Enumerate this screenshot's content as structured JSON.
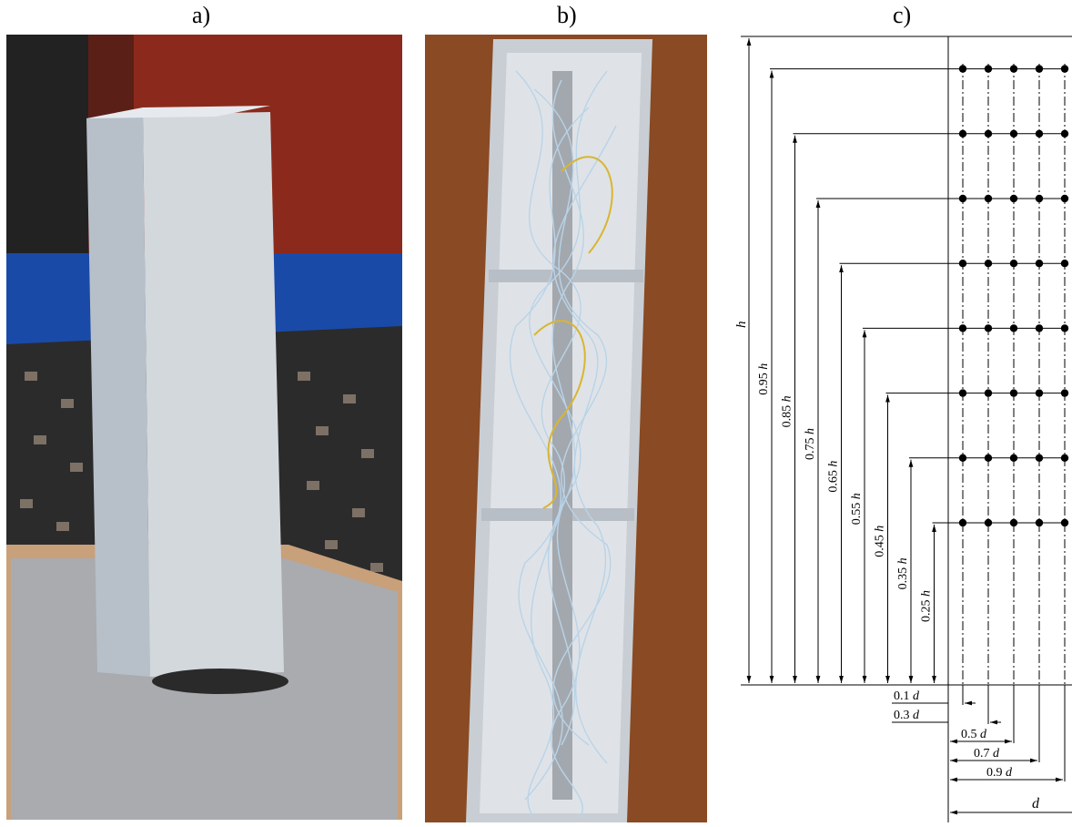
{
  "panels": {
    "a": {
      "label": "a)"
    },
    "b": {
      "label": "b)"
    },
    "c": {
      "label": "c)"
    }
  },
  "diagram": {
    "height_label": "h",
    "height_levels": [
      {
        "coef": "0.95",
        "var": "h"
      },
      {
        "coef": "0.85",
        "var": "h"
      },
      {
        "coef": "0.75",
        "var": "h"
      },
      {
        "coef": "0.65",
        "var": "h"
      },
      {
        "coef": "0.55",
        "var": "h"
      },
      {
        "coef": "0.45",
        "var": "h"
      },
      {
        "coef": "0.35",
        "var": "h"
      },
      {
        "coef": "0.25",
        "var": "h"
      }
    ],
    "width_levels": [
      {
        "coef": "0.1",
        "var": "d"
      },
      {
        "coef": "0.3",
        "var": "d"
      },
      {
        "coef": "0.5",
        "var": "d"
      },
      {
        "coef": "0.7",
        "var": "d"
      },
      {
        "coef": "0.9",
        "var": "d"
      }
    ],
    "width_label": "d"
  },
  "colors": {
    "line": "#000000",
    "wall": "#1a4aa8",
    "wall_dark": "#5a1f16",
    "floor_metal": "#a9abae",
    "tunnel_black": "#2b2b2b",
    "column": "#c9ced4",
    "wood": "#8a4a23",
    "tube": "#b9d3e8",
    "wire": "#d9b531"
  }
}
